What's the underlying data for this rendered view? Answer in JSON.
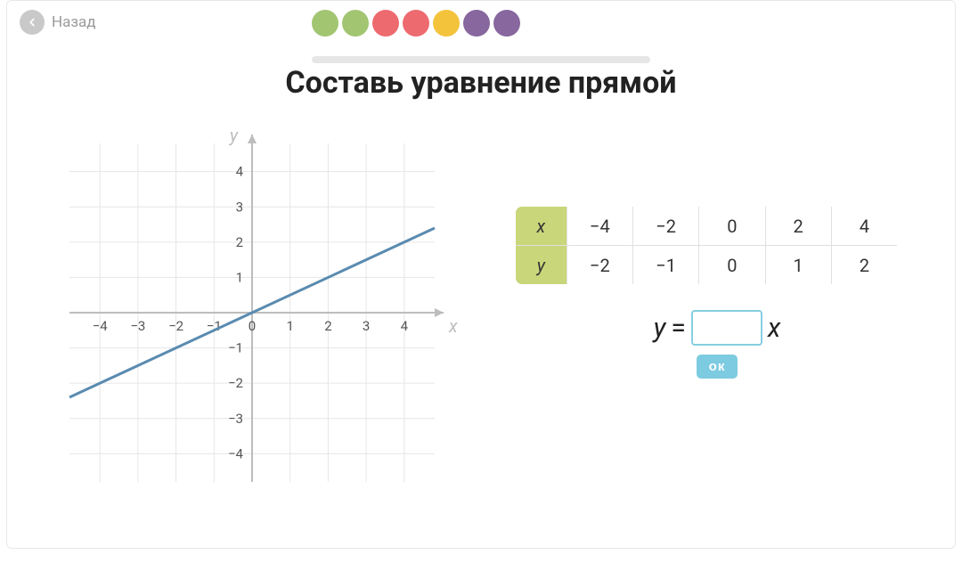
{
  "nav": {
    "back_label": "Назад"
  },
  "progress": {
    "dot_colors": [
      "#a2c572",
      "#a2c572",
      "#ed6a6f",
      "#ed6a6f",
      "#f3c33c",
      "#87679e",
      "#87679e"
    ],
    "track_color": "#e6e6e6"
  },
  "title": "Составь уравнение прямой",
  "graph": {
    "type": "line",
    "x_axis_label": "x",
    "y_axis_label": "y",
    "xlim": [
      -4.8,
      4.8
    ],
    "ylim": [
      -4.8,
      4.8
    ],
    "xticks": [
      -4,
      -3,
      -2,
      -1,
      0,
      1,
      2,
      3,
      4
    ],
    "yticks": [
      -4,
      -3,
      -2,
      -1,
      1,
      2,
      3,
      4
    ],
    "xtick_labels": [
      "−4",
      "−3",
      "−2",
      "−1",
      "0",
      "1",
      "2",
      "3",
      "4"
    ],
    "ytick_labels": [
      "−4",
      "−3",
      "−2",
      "−1",
      "1",
      "2",
      "3",
      "4"
    ],
    "origin_label": "0",
    "grid_color": "#e6e6e6",
    "axis_color": "#bdbdbd",
    "line_color": "#5a8bb0",
    "line_width": 3,
    "line_points": [
      [
        -4.8,
        -2.4
      ],
      [
        4.8,
        2.4
      ]
    ],
    "background_color": "#ffffff"
  },
  "table": {
    "header_x": "x",
    "header_y": "y",
    "x_values": [
      "−4",
      "−2",
      "0",
      "2",
      "4"
    ],
    "y_values": [
      "−2",
      "−1",
      "0",
      "1",
      "2"
    ],
    "header_bg": "#c9d67a",
    "border_color": "#e0e0e0"
  },
  "equation": {
    "lhs": "y",
    "equals": "=",
    "rhs_var": "x",
    "input_value": "",
    "input_border": "#86cfe0"
  },
  "buttons": {
    "ok_label": "ок",
    "ok_bg": "#7dcbe0"
  }
}
